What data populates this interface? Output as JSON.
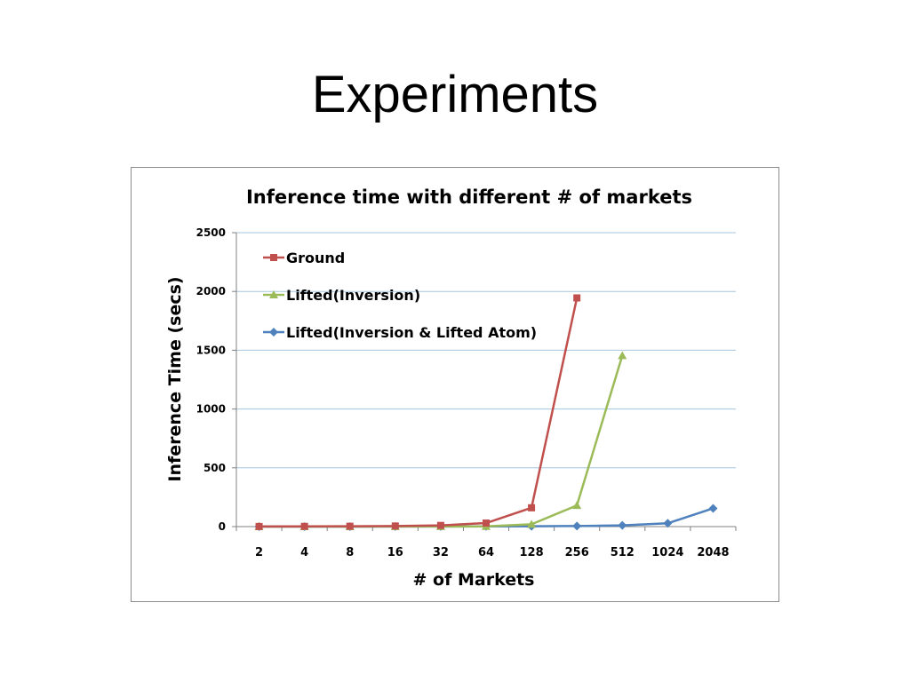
{
  "slide": {
    "title": "Experiments"
  },
  "chart_data": {
    "type": "line",
    "title": "Inference time with different # of markets",
    "xlabel": "# of Markets",
    "ylabel": "Inference Time (secs)",
    "categories": [
      "2",
      "4",
      "8",
      "16",
      "32",
      "64",
      "128",
      "256",
      "512",
      "1024",
      "2048"
    ],
    "ylim": [
      0,
      2500
    ],
    "yticks": [
      0,
      500,
      1000,
      1500,
      2000,
      2500
    ],
    "grid": true,
    "legend_position": "top-left",
    "series": [
      {
        "name": "Ground",
        "color": "#c0504d",
        "marker": "square",
        "values": [
          1,
          2,
          3,
          5,
          10,
          30,
          160,
          1945,
          null,
          null,
          null
        ]
      },
      {
        "name": "Lifted(Inversion)",
        "color": "#9bbb59",
        "marker": "triangle",
        "values": [
          0,
          0,
          0,
          1,
          1,
          2,
          20,
          180,
          1455,
          null,
          null
        ]
      },
      {
        "name": "Lifted(Inversion & Lifted Atom)",
        "color": "#4f81bd",
        "marker": "diamond",
        "values": [
          0,
          0,
          0,
          1,
          1,
          2,
          3,
          5,
          10,
          28,
          155
        ]
      }
    ]
  }
}
